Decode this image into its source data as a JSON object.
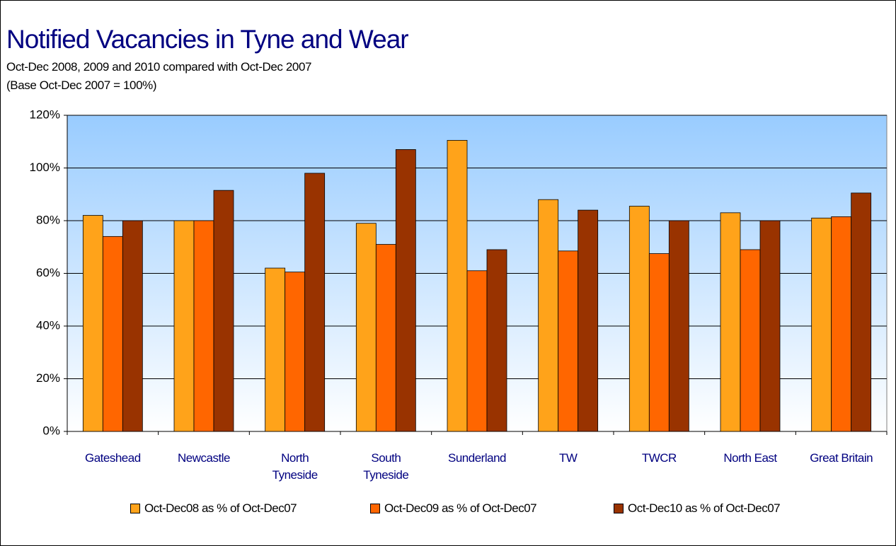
{
  "chart_data": {
    "type": "bar",
    "title": "Notified Vacancies in Tyne and Wear",
    "subtitle": [
      "Oct-Dec 2008, 2009 and 2010 compared with Oct-Dec 2007",
      "(Base Oct-Dec 2007 = 100%)"
    ],
    "categories": [
      "Gateshead",
      "Newcastle",
      "North Tyneside",
      "South Tyneside",
      "Sunderland",
      "TW",
      "TWCR",
      "North East",
      "Great Britain"
    ],
    "series": [
      {
        "name": "Oct-Dec08 as % of Oct-Dec07",
        "color": "#ffa31a",
        "values": [
          82,
          80,
          62,
          79,
          110.5,
          88,
          85.5,
          83,
          81
        ]
      },
      {
        "name": "Oct-Dec09 as % of Oct-Dec07",
        "color": "#ff6600",
        "values": [
          74,
          80,
          60.5,
          71,
          61,
          68.5,
          67.5,
          69,
          81.5
        ]
      },
      {
        "name": "Oct-Dec10 as % of Oct-Dec07",
        "color": "#993300",
        "values": [
          80,
          91.5,
          98,
          107,
          69,
          84,
          80,
          80,
          90.5
        ]
      }
    ],
    "ylim": [
      0,
      120
    ],
    "yticks": [
      {
        "value": 0,
        "label": "0%"
      },
      {
        "value": 20,
        "label": "20%"
      },
      {
        "value": 40,
        "label": "40%"
      },
      {
        "value": 60,
        "label": "60%"
      },
      {
        "value": 80,
        "label": "80%"
      },
      {
        "value": 100,
        "label": "100%"
      },
      {
        "value": 120,
        "label": "120%"
      }
    ],
    "grid": true,
    "legend": "bottom"
  }
}
